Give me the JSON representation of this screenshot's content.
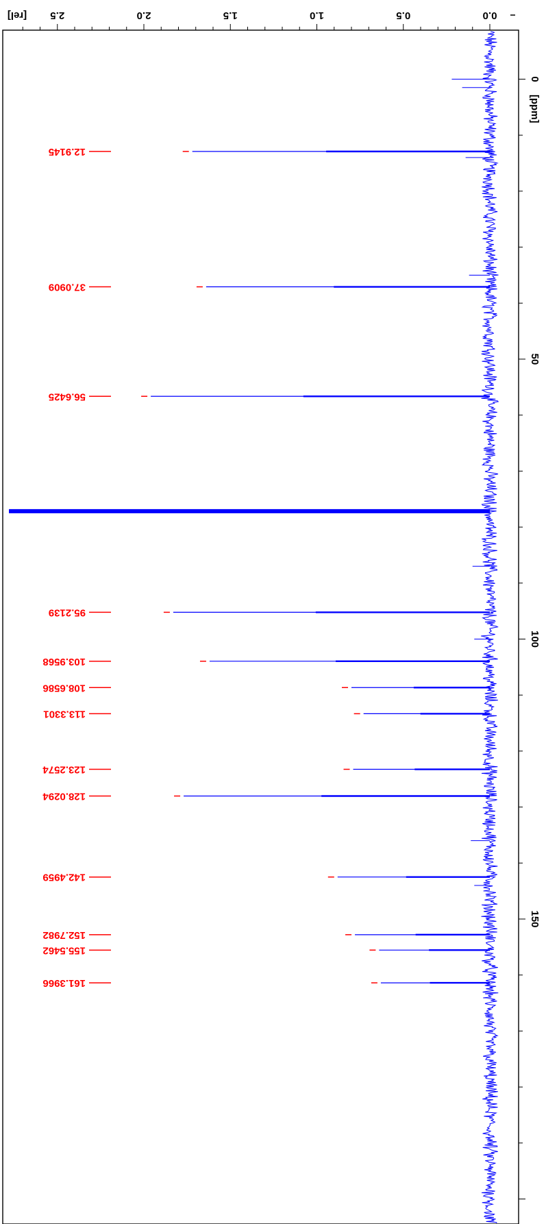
{
  "chart_data": {
    "type": "line",
    "orientation": "rotated",
    "x_axis": {
      "label": "[ppm]",
      "range": [
        -6,
        205
      ],
      "major_ticks": [
        0,
        50,
        100,
        150
      ],
      "minor_step": 10,
      "direction": "top-to-bottom"
    },
    "y_axis": {
      "label": "[rel]",
      "range": [
        -0.08,
        2.78
      ],
      "major_ticks": [
        0.0,
        0.5,
        1.0,
        1.5,
        2.0,
        2.5
      ],
      "tick_labels": [
        "0.0",
        "0.5",
        "1.0",
        "1.5",
        "2.0",
        "2.5"
      ],
      "minor_step": 0.1,
      "text_orientation": "upside-down"
    },
    "series": [
      {
        "values": []
      }
    ],
    "peaks": [
      {
        "ppm": 12.9145,
        "label": "12.9145",
        "height": 1.72
      },
      {
        "ppm": 37.0909,
        "label": "37.0909",
        "height": 1.64
      },
      {
        "ppm": 56.6425,
        "label": "56.6425",
        "height": 1.96
      },
      {
        "ppm": 77.16,
        "label": "",
        "height": 2.78
      },
      {
        "ppm": 95.2139,
        "label": "95.2139",
        "height": 1.83
      },
      {
        "ppm": 103.9568,
        "label": "103.9568",
        "height": 1.62
      },
      {
        "ppm": 108.6586,
        "label": "108.6586",
        "height": 0.8
      },
      {
        "ppm": 113.3301,
        "label": "113.3301",
        "height": 0.73
      },
      {
        "ppm": 123.2574,
        "label": "123.2574",
        "height": 0.79
      },
      {
        "ppm": 128.0294,
        "label": "128.0294",
        "height": 1.77
      },
      {
        "ppm": 142.4959,
        "label": "142.4959",
        "height": 0.88
      },
      {
        "ppm": 152.7982,
        "label": "152.7982",
        "height": 0.78
      },
      {
        "ppm": 155.5462,
        "label": "155.5462",
        "height": 0.64
      },
      {
        "ppm": 161.3966,
        "label": "161.3966",
        "height": 0.63
      }
    ],
    "colors": {
      "spectrum": "#0000ff",
      "peak_labels": "#ff0000",
      "axes": "#000000"
    },
    "grid": false
  }
}
